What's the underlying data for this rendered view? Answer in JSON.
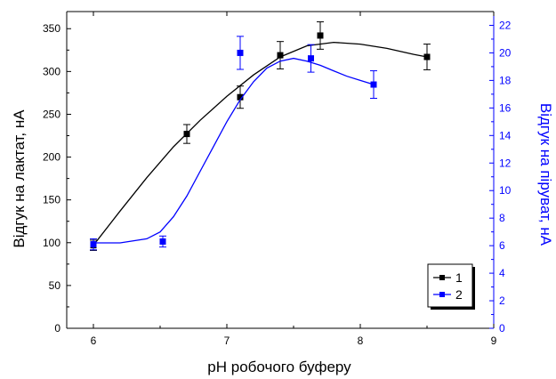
{
  "chart_data": {
    "type": "scatter",
    "xlabel": "pH робочого буферу",
    "ylabel_left": "Відгук на лактат, нА",
    "ylabel_right": "Відгук на піруват, нА",
    "xlim": [
      5.8,
      9
    ],
    "ylim_left": [
      0,
      370
    ],
    "ylim_right": [
      0,
      23
    ],
    "x_ticks": [
      6,
      7,
      8,
      9
    ],
    "y_left_ticks": [
      0,
      50,
      100,
      150,
      200,
      250,
      300,
      350
    ],
    "y_right_ticks": [
      0,
      2,
      4,
      6,
      8,
      10,
      12,
      14,
      16,
      18,
      20,
      22
    ],
    "grid": false,
    "legend_position": "bottom-right",
    "series": [
      {
        "name": "1",
        "axis": "left",
        "color": "#000000",
        "marker": "square",
        "x": [
          6.0,
          6.7,
          7.1,
          7.4,
          7.7,
          8.5
        ],
        "y": [
          97,
          227,
          270,
          319,
          342,
          317
        ],
        "err": [
          6,
          11,
          13,
          16,
          16,
          15
        ],
        "fit_x": [
          6.0,
          6.2,
          6.4,
          6.6,
          6.8,
          7.0,
          7.2,
          7.4,
          7.6,
          7.8,
          8.0,
          8.2,
          8.4,
          8.5
        ],
        "fit_y": [
          97,
          137,
          176,
          212,
          243,
          271,
          296,
          317,
          330,
          334,
          332,
          327,
          320,
          317
        ]
      },
      {
        "name": "2",
        "axis": "right",
        "color": "#0000ff",
        "marker": "square",
        "x": [
          6.0,
          6.52,
          7.1,
          7.63,
          8.1
        ],
        "y": [
          6.1,
          6.3,
          20.0,
          19.6,
          17.7
        ],
        "err": [
          0.4,
          0.4,
          1.2,
          1.0,
          1.0
        ],
        "fit_x": [
          6.0,
          6.2,
          6.4,
          6.5,
          6.6,
          6.7,
          6.8,
          6.9,
          7.0,
          7.1,
          7.2,
          7.3,
          7.4,
          7.5,
          7.6,
          7.7,
          7.8,
          7.9,
          8.0,
          8.1
        ],
        "fit_y": [
          6.2,
          6.2,
          6.5,
          7.0,
          8.1,
          9.6,
          11.4,
          13.2,
          15.0,
          16.6,
          17.9,
          18.9,
          19.4,
          19.6,
          19.4,
          19.1,
          18.7,
          18.3,
          18.0,
          17.7
        ]
      }
    ]
  }
}
